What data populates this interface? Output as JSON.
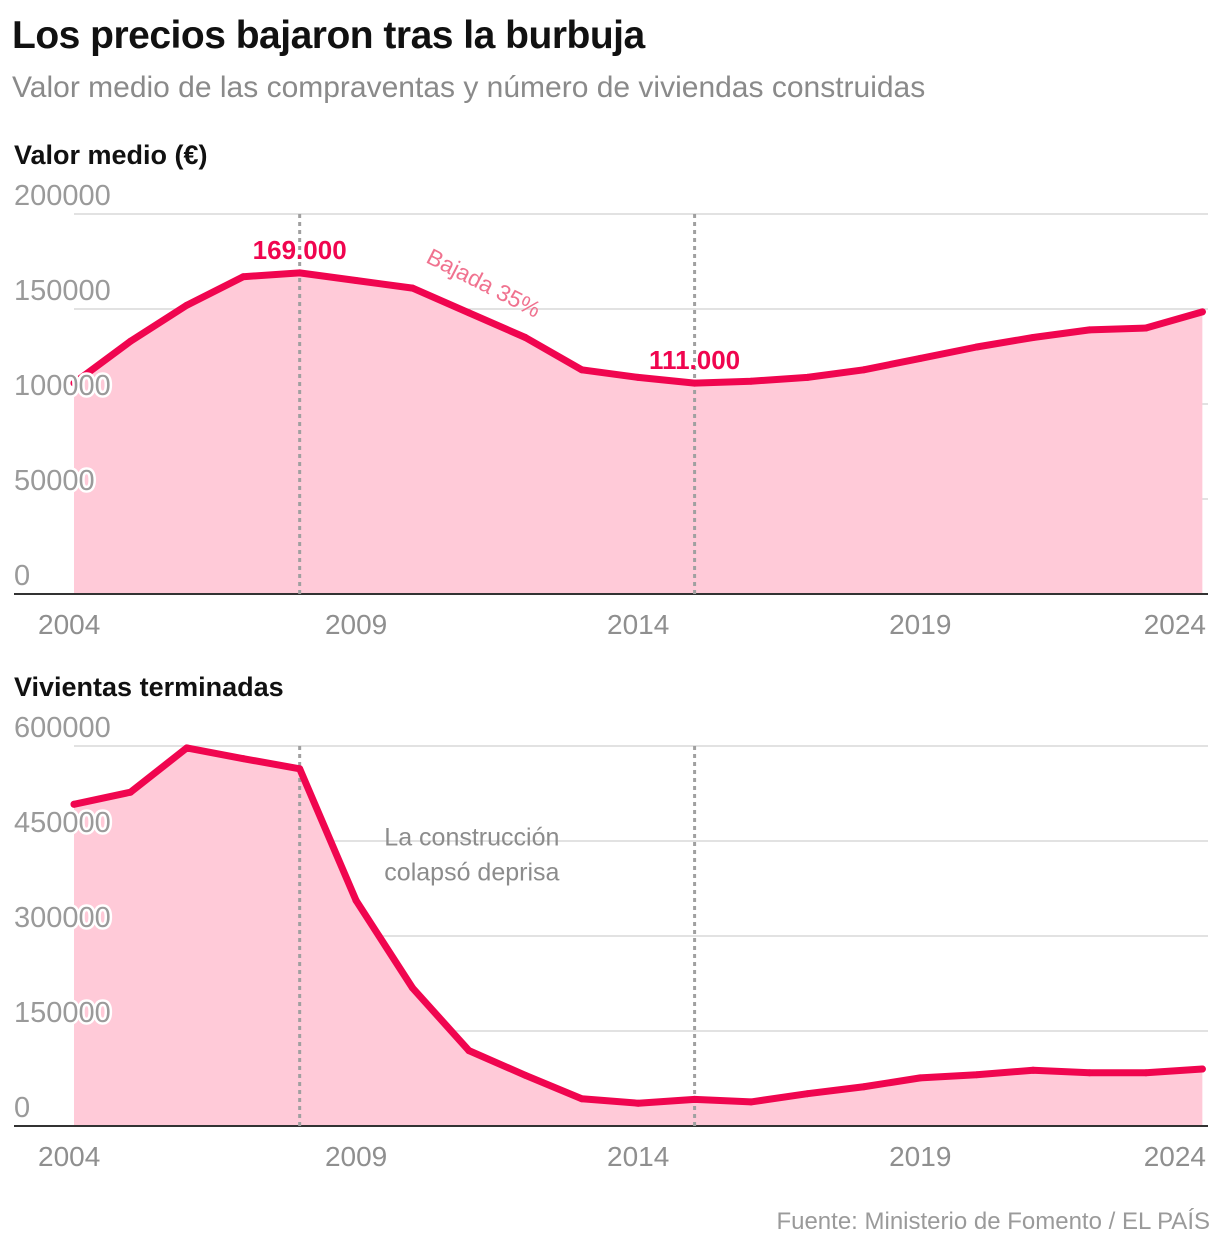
{
  "header": {
    "title": "Los precios bajaron tras la burbuja",
    "subtitle": "Valor medio de las compraventas y número de viviendas construidas"
  },
  "source": "Fuente: Ministerio de Fomento / EL PAÍS",
  "colors": {
    "line": "#f0054f",
    "fill": "#ffcad8",
    "grid": "#d9d9d9",
    "marker": "#a0a0a0"
  },
  "chart_data": [
    {
      "type": "area",
      "title": "Valor medio (€)",
      "xlabel": "",
      "ylabel": "",
      "x": [
        2004,
        2005,
        2006,
        2007,
        2008,
        2009,
        2010,
        2011,
        2012,
        2013,
        2014,
        2015,
        2016,
        2017,
        2018,
        2019,
        2020,
        2021,
        2022,
        2023,
        2024
      ],
      "values": [
        111000,
        133000,
        152000,
        167000,
        169000,
        165000,
        161000,
        148000,
        135000,
        118000,
        114000,
        111000,
        112000,
        114000,
        118000,
        124000,
        130000,
        135000,
        139000,
        140000,
        148500
      ],
      "xlim": [
        2004,
        2024.1
      ],
      "ylim": [
        0,
        200000
      ],
      "yticks": [
        0,
        50000,
        100000,
        150000,
        200000
      ],
      "ytick_labels": [
        "0",
        "50000",
        "100000",
        "150000",
        "200000"
      ],
      "xticks": [
        2004,
        2009,
        2014,
        2019,
        2024
      ],
      "xtick_labels": [
        "2004",
        "2009",
        "2014",
        "2019",
        "2024"
      ],
      "markers": [
        2008,
        2015
      ],
      "grid": true,
      "annotations": [
        {
          "text": "169.000",
          "x": 2008,
          "y": 169000,
          "style": "peak",
          "anchor": "middle",
          "dy": -14
        },
        {
          "text": "111.000",
          "x": 2015,
          "y": 111000,
          "style": "peak",
          "anchor": "middle",
          "dy": -14
        },
        {
          "text": "Bajada 35%",
          "x": 2011.2,
          "y": 160000,
          "style": "note-pink",
          "anchor": "middle",
          "rotate": 27,
          "dy": 0
        }
      ]
    },
    {
      "type": "area",
      "title": "Vivientas terminadas",
      "xlabel": "",
      "ylabel": "",
      "x": [
        2004,
        2005,
        2006,
        2007,
        2008,
        2009,
        2010,
        2011,
        2012,
        2013,
        2014,
        2015,
        2016,
        2017,
        2018,
        2019,
        2020,
        2021,
        2022,
        2023,
        2024
      ],
      "values": [
        508000,
        527000,
        597000,
        580000,
        564000,
        356000,
        218000,
        119000,
        80000,
        43000,
        36000,
        42000,
        38000,
        51000,
        62000,
        76000,
        81000,
        88000,
        84000,
        84000,
        90000
      ],
      "xlim": [
        2004,
        2024.1
      ],
      "ylim": [
        0,
        600000
      ],
      "yticks": [
        0,
        150000,
        300000,
        450000,
        600000
      ],
      "ytick_labels": [
        "0",
        "150000",
        "300000",
        "450000",
        "600000"
      ],
      "xticks": [
        2004,
        2009,
        2014,
        2019,
        2024
      ],
      "xtick_labels": [
        "2004",
        "2009",
        "2014",
        "2019",
        "2024"
      ],
      "markers": [
        2008,
        2015
      ],
      "grid": true,
      "annotations": [
        {
          "text": "La construcción",
          "x": 2009.5,
          "y": 443000,
          "style": "note-grey",
          "anchor": "start",
          "dy": 0
        },
        {
          "text": "colapsó deprisa",
          "x": 2009.5,
          "y": 388000,
          "style": "note-grey",
          "anchor": "start",
          "dy": 0
        }
      ]
    }
  ]
}
